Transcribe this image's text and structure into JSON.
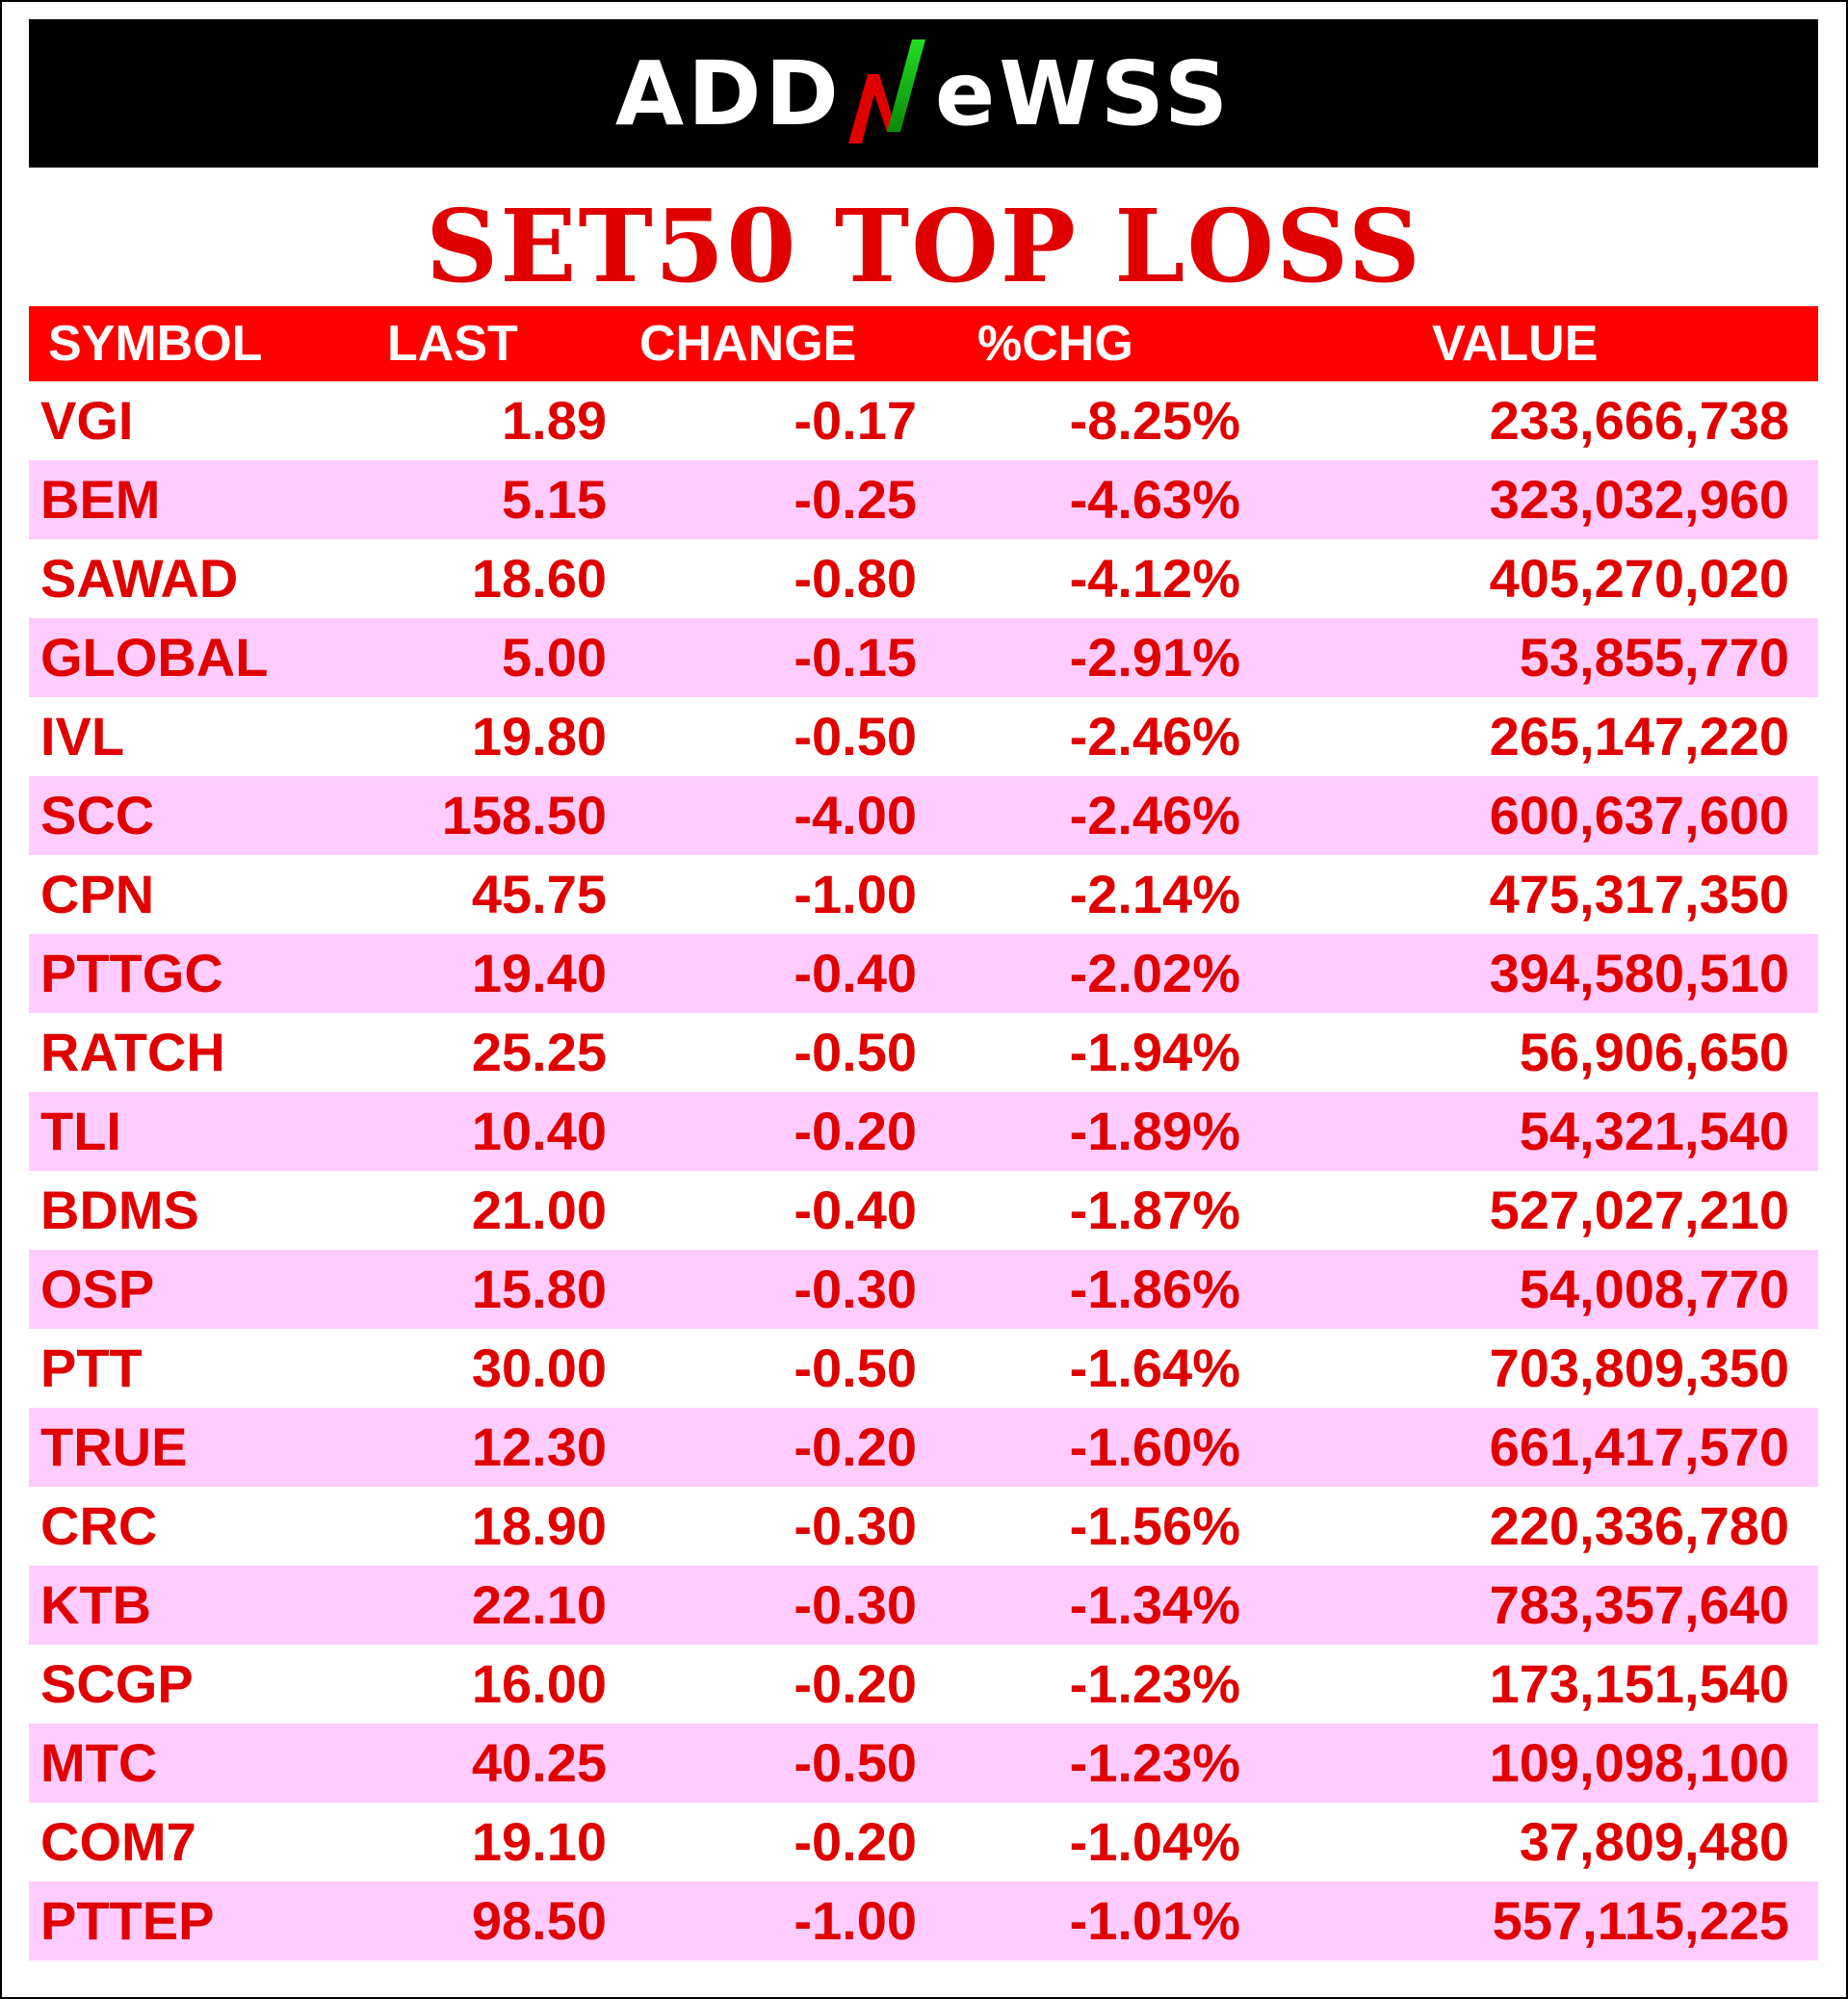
{
  "brand": {
    "logo_part1": "ADD",
    "logo_part2": "eWSS",
    "logo_accent_colors": [
      "#00c000",
      "#e00000"
    ]
  },
  "title": "SET50 TOP LOSS",
  "columns": {
    "symbol": "SYMBOL",
    "last": "LAST",
    "change": "CHANGE",
    "pct": "%CHG",
    "value": "VALUE"
  },
  "rows": [
    {
      "symbol": "VGI",
      "last": "1.89",
      "change": "-0.17",
      "pct": "-8.25%",
      "value": "233,666,738"
    },
    {
      "symbol": "BEM",
      "last": "5.15",
      "change": "-0.25",
      "pct": "-4.63%",
      "value": "323,032,960"
    },
    {
      "symbol": "SAWAD",
      "last": "18.60",
      "change": "-0.80",
      "pct": "-4.12%",
      "value": "405,270,020"
    },
    {
      "symbol": "GLOBAL",
      "last": "5.00",
      "change": "-0.15",
      "pct": "-2.91%",
      "value": "53,855,770"
    },
    {
      "symbol": "IVL",
      "last": "19.80",
      "change": "-0.50",
      "pct": "-2.46%",
      "value": "265,147,220"
    },
    {
      "symbol": "SCC",
      "last": "158.50",
      "change": "-4.00",
      "pct": "-2.46%",
      "value": "600,637,600"
    },
    {
      "symbol": "CPN",
      "last": "45.75",
      "change": "-1.00",
      "pct": "-2.14%",
      "value": "475,317,350"
    },
    {
      "symbol": "PTTGC",
      "last": "19.40",
      "change": "-0.40",
      "pct": "-2.02%",
      "value": "394,580,510"
    },
    {
      "symbol": "RATCH",
      "last": "25.25",
      "change": "-0.50",
      "pct": "-1.94%",
      "value": "56,906,650"
    },
    {
      "symbol": "TLI",
      "last": "10.40",
      "change": "-0.20",
      "pct": "-1.89%",
      "value": "54,321,540"
    },
    {
      "symbol": "BDMS",
      "last": "21.00",
      "change": "-0.40",
      "pct": "-1.87%",
      "value": "527,027,210"
    },
    {
      "symbol": "OSP",
      "last": "15.80",
      "change": "-0.30",
      "pct": "-1.86%",
      "value": "54,008,770"
    },
    {
      "symbol": "PTT",
      "last": "30.00",
      "change": "-0.50",
      "pct": "-1.64%",
      "value": "703,809,350"
    },
    {
      "symbol": "TRUE",
      "last": "12.30",
      "change": "-0.20",
      "pct": "-1.60%",
      "value": "661,417,570"
    },
    {
      "symbol": "CRC",
      "last": "18.90",
      "change": "-0.30",
      "pct": "-1.56%",
      "value": "220,336,780"
    },
    {
      "symbol": "KTB",
      "last": "22.10",
      "change": "-0.30",
      "pct": "-1.34%",
      "value": "783,357,640"
    },
    {
      "symbol": "SCGP",
      "last": "16.00",
      "change": "-0.20",
      "pct": "-1.23%",
      "value": "173,151,540"
    },
    {
      "symbol": "MTC",
      "last": "40.25",
      "change": "-0.50",
      "pct": "-1.23%",
      "value": "109,098,100"
    },
    {
      "symbol": "COM7",
      "last": "19.10",
      "change": "-0.20",
      "pct": "-1.04%",
      "value": "37,809,480"
    },
    {
      "symbol": "PTTEP",
      "last": "98.50",
      "change": "-1.00",
      "pct": "-1.01%",
      "value": "557,115,225"
    }
  ],
  "colors": {
    "title_red": "#e00000",
    "header_red": "#ff0000",
    "alt_row_pink": "#ffccff",
    "banner_black": "#000000"
  }
}
